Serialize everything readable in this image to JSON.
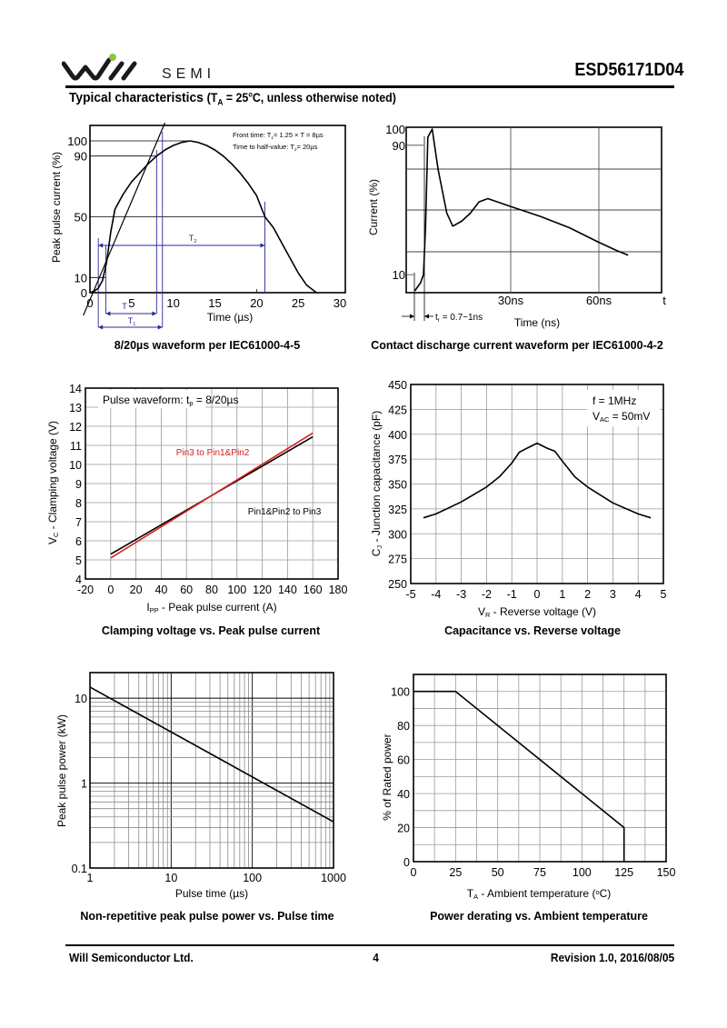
{
  "header": {
    "brand_text": "SEMI",
    "logo_accent_color": "#8cc63f",
    "part_number": "ESD56171D04"
  },
  "section": {
    "title": "Typical characteristics",
    "condition_prefix": "(T",
    "condition_sub": "A",
    "condition_rest": " = 25",
    "condition_deg": "o",
    "condition_tail": "C, unless otherwise noted)"
  },
  "footer": {
    "company": "Will Semiconductor Ltd.",
    "page_number": "4",
    "revision": "Revision 1.0, 2016/08/05"
  },
  "chart_data": [
    {
      "id": "waveform-8-20",
      "type": "line",
      "title": "8/20µs waveform per IEC61000-4-5",
      "xlabel": "Time (µs)",
      "ylabel": "Peak pulse current (%)",
      "xlim": [
        0,
        30
      ],
      "ylim": [
        0,
        115
      ],
      "xticks": [
        "0",
        "5",
        "10",
        "15",
        "20",
        "25",
        "30"
      ],
      "xtick_values": [
        0,
        5,
        10,
        15,
        20,
        25,
        30
      ],
      "yticks": [
        "0",
        "10",
        "50",
        "90",
        "100"
      ],
      "ytick_values": [
        0,
        10,
        50,
        90,
        100
      ],
      "series": [
        {
          "name": "pulse",
          "x": [
            0,
            0.5,
            1,
            1.5,
            2,
            2.5,
            3,
            4,
            5,
            6,
            7,
            8,
            9,
            10,
            11,
            12,
            13,
            14,
            15,
            16,
            17,
            18,
            19,
            20,
            21,
            22,
            23,
            24,
            25,
            26,
            27.2
          ],
          "y": [
            0,
            1,
            3,
            8,
            20,
            40,
            55,
            65,
            73,
            79,
            85,
            90,
            94,
            97,
            99,
            100,
            99,
            97,
            94,
            90,
            85,
            79,
            72,
            64,
            50,
            43,
            33,
            23,
            13,
            5,
            0
          ]
        },
        {
          "name": "front-line",
          "x": [
            -0.8,
            9
          ],
          "y": [
            -15,
            112
          ]
        }
      ],
      "annotations": {
        "line1_prefix": "Front time: T",
        "line1_sub": "1",
        "line1_rest": "= 1.25 × T = 8µs",
        "line2_prefix": "Time to half-value: T",
        "line2_sub": "2",
        "line2_rest": "= 20µs",
        "t_label": "T",
        "t1_label": "T",
        "t1_sub": "1",
        "t2_label": "T",
        "t2_sub": "2"
      },
      "marker_color": "#2a2a9a"
    },
    {
      "id": "contact-discharge",
      "type": "line",
      "title": "Contact discharge current waveform per IEC61000-4-2",
      "xlabel": "Time (ns)",
      "ylabel": "Current (%)",
      "xlim": [
        -3,
        86
      ],
      "ylim": [
        0,
        100
      ],
      "xticks": [
        "30ns",
        "60ns",
        "t"
      ],
      "yticks": [
        "10",
        "90",
        "100"
      ],
      "ytick_values": [
        10,
        90,
        100
      ],
      "series": [
        {
          "name": "esd-current",
          "x": [
            -3,
            -1,
            0,
            0.7,
            1.5,
            3,
            5,
            8,
            10,
            13,
            16,
            19,
            22,
            30,
            40,
            50,
            60,
            66,
            70
          ],
          "y": [
            0,
            5,
            10,
            40,
            95,
            100,
            75,
            48,
            40,
            43,
            48,
            55,
            57,
            52,
            46,
            39,
            30,
            25,
            22
          ]
        }
      ],
      "annotations": {
        "tr_prefix": "t",
        "tr_sub": "r",
        "tr_rest": " = 0.7~1ns"
      }
    },
    {
      "id": "clamping-voltage",
      "type": "line",
      "title": "Clamping voltage vs. Peak pulse current",
      "xlabel_prefix": "I",
      "xlabel_sub": "PP",
      "xlabel_rest": " - Peak pulse current (A)",
      "ylabel_prefix": "V",
      "ylabel_sub": "C",
      "ylabel_rest": " - Clamping voltage (V)",
      "xlim": [
        -20,
        180
      ],
      "ylim": [
        4,
        14
      ],
      "xticks": [
        "-20",
        "0",
        "20",
        "40",
        "60",
        "80",
        "100",
        "120",
        "140",
        "160",
        "180"
      ],
      "xtick_values": [
        -20,
        0,
        20,
        40,
        60,
        80,
        100,
        120,
        140,
        160,
        180
      ],
      "yticks": [
        "4",
        "5",
        "6",
        "7",
        "8",
        "9",
        "10",
        "11",
        "12",
        "13",
        "14"
      ],
      "ytick_values": [
        4,
        5,
        6,
        7,
        8,
        9,
        10,
        11,
        12,
        13,
        14
      ],
      "grid": true,
      "legend_box_prefix": "Pulse waveform: t",
      "legend_box_sub": "p",
      "legend_box_rest": " = 8/20µs",
      "series": [
        {
          "name": "Pin1&Pin2 to Pin3",
          "color": "#000000",
          "x": [
            0,
            160
          ],
          "y": [
            5.3,
            11.45
          ]
        },
        {
          "name": "Pin3 to Pin1&Pin2",
          "color": "#d42020",
          "x": [
            0,
            160
          ],
          "y": [
            5.1,
            11.65
          ]
        }
      ]
    },
    {
      "id": "capacitance",
      "type": "line",
      "title": "Capacitance vs. Reverse voltage",
      "xlabel_prefix": "V",
      "xlabel_sub": "R",
      "xlabel_rest": " - Reverse voltage (V)",
      "ylabel_prefix": "C",
      "ylabel_sub": "J",
      "ylabel_rest": " - Junction capacitance (pF)",
      "xlim": [
        -5,
        5
      ],
      "ylim": [
        250,
        450
      ],
      "xticks": [
        "-5",
        "-4",
        "-3",
        "-2",
        "-1",
        "0",
        "1",
        "2",
        "3",
        "4",
        "5"
      ],
      "xtick_values": [
        -5,
        -4,
        -3,
        -2,
        -1,
        0,
        1,
        2,
        3,
        4,
        5
      ],
      "yticks": [
        "250",
        "275",
        "300",
        "325",
        "350",
        "375",
        "400",
        "425",
        "450"
      ],
      "ytick_values": [
        250,
        275,
        300,
        325,
        350,
        375,
        400,
        425,
        450
      ],
      "grid": true,
      "note_line1": "f = 1MHz",
      "note_line2_prefix": "V",
      "note_line2_sub": "AC",
      "note_line2_rest": " = 50mV",
      "series": [
        {
          "name": "Cj",
          "x": [
            -4.5,
            -4,
            -3,
            -2,
            -1.5,
            -1,
            -0.7,
            -0.4,
            0,
            0.4,
            0.7,
            1,
            1.5,
            2,
            3,
            4,
            4.5
          ],
          "y": [
            316,
            320,
            332,
            347,
            357,
            371,
            382,
            386,
            391,
            386,
            383,
            373,
            357,
            347,
            331,
            320,
            316
          ]
        }
      ]
    },
    {
      "id": "peak-pulse-power",
      "type": "line",
      "title": "Non-repetitive peak pulse power vs. Pulse time",
      "xlabel": "Pulse time (µs)",
      "ylabel": "Peak pulse power (kW)",
      "xscale": "log",
      "yscale": "log",
      "xlim": [
        1,
        1000
      ],
      "ylim": [
        0.1,
        20
      ],
      "xticks": [
        "1",
        "10",
        "100",
        "1000"
      ],
      "xtick_values": [
        1,
        10,
        100,
        1000
      ],
      "yticks": [
        "0.1",
        "1",
        "10"
      ],
      "ytick_values": [
        0.1,
        1,
        10
      ],
      "grid": true,
      "series": [
        {
          "name": "Ppp",
          "x": [
            1,
            1000
          ],
          "y": [
            13.5,
            0.35
          ]
        }
      ]
    },
    {
      "id": "power-derating",
      "type": "line",
      "title": "Power derating vs. Ambient temperature",
      "xlabel_prefix": "T",
      "xlabel_sub": "A",
      "xlabel_rest": " - Ambient temperature (",
      "xlabel_deg": "o",
      "xlabel_tail": "C)",
      "ylabel": "% of Rated power",
      "xlim": [
        0,
        150
      ],
      "ylim": [
        0,
        110
      ],
      "xticks": [
        "0",
        "25",
        "50",
        "75",
        "100",
        "125",
        "150"
      ],
      "xtick_values": [
        0,
        25,
        50,
        75,
        100,
        125,
        150
      ],
      "yticks": [
        "0",
        "20",
        "40",
        "60",
        "80",
        "100"
      ],
      "ytick_values": [
        0,
        20,
        40,
        60,
        80,
        100
      ],
      "grid": true,
      "series": [
        {
          "name": "derating",
          "x": [
            0,
            25,
            125,
            125
          ],
          "y": [
            100,
            100,
            20,
            0
          ]
        }
      ]
    }
  ]
}
